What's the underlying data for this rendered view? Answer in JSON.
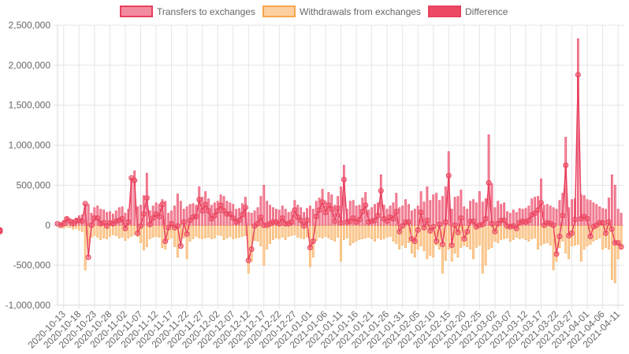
{
  "chart_data": {
    "type": "bar",
    "title": "",
    "xlabel": "",
    "ylabel": "",
    "ylim": [
      -1000000,
      2500000
    ],
    "y_ticks": [
      "2,500,000",
      "2,000,000",
      "1,500,000",
      "1,000,000",
      "500,000",
      "0",
      "-500,000",
      "-1,000,000"
    ],
    "y_tick_values": [
      2500000,
      2000000,
      1500000,
      1000000,
      500000,
      0,
      -500000,
      -1000000
    ],
    "x_range": [
      "2020-10-11",
      "2021-04-13"
    ],
    "x_ticks": [
      "2020-10-13",
      "2020-10-18",
      "2020-10-23",
      "2020-10-28",
      "2020-11-02",
      "2020-11-07",
      "2020-11-12",
      "2020-11-17",
      "2020-11-22",
      "2020-11-27",
      "2020-12-02",
      "2020-12-07",
      "2020-12-12",
      "2020-12-17",
      "2020-12-22",
      "2020-12-27",
      "2021-01-01",
      "2021-01-06",
      "2021-01-11",
      "2021-01-16",
      "2021-01-21",
      "2021-01-26",
      "2021-01-31",
      "2021-02-05",
      "2021-02-10",
      "2021-02-15",
      "2021-02-20",
      "2021-02-25",
      "2021-03-02",
      "2021-03-07",
      "2021-03-12",
      "2021-03-17",
      "2021-03-22",
      "2021-03-27",
      "2021-04-01",
      "2021-04-06",
      "2021-04-11"
    ],
    "grid": true,
    "legend_position": "top",
    "series": [
      {
        "name": "Transfers to exchanges",
        "kind": "bar",
        "color": "#e8405e",
        "fill": "#f38ba0"
      },
      {
        "name": "Withdrawals from exchanges",
        "kind": "bar",
        "color": "#f5a64a",
        "fill": "#fdd0a2"
      },
      {
        "name": "Difference",
        "kind": "line",
        "color": "#e8405e",
        "fill": "#f05a6e"
      }
    ],
    "x": [
      "2020-10-11",
      "2020-10-12",
      "2020-10-13",
      "2020-10-14",
      "2020-10-15",
      "2020-10-16",
      "2020-10-17",
      "2020-10-18",
      "2020-10-19",
      "2020-10-20",
      "2020-10-21",
      "2020-10-22",
      "2020-10-23",
      "2020-10-24",
      "2020-10-25",
      "2020-10-26",
      "2020-10-27",
      "2020-10-28",
      "2020-10-29",
      "2020-10-30",
      "2020-10-31",
      "2020-11-01",
      "2020-11-02",
      "2020-11-03",
      "2020-11-04",
      "2020-11-05",
      "2020-11-06",
      "2020-11-07",
      "2020-11-08",
      "2020-11-09",
      "2020-11-10",
      "2020-11-11",
      "2020-11-12",
      "2020-11-13",
      "2020-11-14",
      "2020-11-15",
      "2020-11-16",
      "2020-11-17",
      "2020-11-18",
      "2020-11-19",
      "2020-11-20",
      "2020-11-21",
      "2020-11-22",
      "2020-11-23",
      "2020-11-24",
      "2020-11-25",
      "2020-11-26",
      "2020-11-27",
      "2020-11-28",
      "2020-11-29",
      "2020-11-30",
      "2020-12-01",
      "2020-12-02",
      "2020-12-03",
      "2020-12-04",
      "2020-12-05",
      "2020-12-06",
      "2020-12-07",
      "2020-12-08",
      "2020-12-09",
      "2020-12-10",
      "2020-12-11",
      "2020-12-12",
      "2020-12-13",
      "2020-12-14",
      "2020-12-15",
      "2020-12-16",
      "2020-12-17",
      "2020-12-18",
      "2020-12-19",
      "2020-12-20",
      "2020-12-21",
      "2020-12-22",
      "2020-12-23",
      "2020-12-24",
      "2020-12-25",
      "2020-12-26",
      "2020-12-27",
      "2020-12-28",
      "2020-12-29",
      "2020-12-30",
      "2020-12-31",
      "2021-01-01",
      "2021-01-02",
      "2021-01-03",
      "2021-01-04",
      "2021-01-05",
      "2021-01-06",
      "2021-01-07",
      "2021-01-08",
      "2021-01-09",
      "2021-01-10",
      "2021-01-11",
      "2021-01-12",
      "2021-01-13",
      "2021-01-14",
      "2021-01-15",
      "2021-01-16",
      "2021-01-17",
      "2021-01-18",
      "2021-01-19",
      "2021-01-20",
      "2021-01-21",
      "2021-01-22",
      "2021-01-23",
      "2021-01-24",
      "2021-01-25",
      "2021-01-26",
      "2021-01-27",
      "2021-01-28",
      "2021-01-29",
      "2021-01-30",
      "2021-01-31",
      "2021-02-01",
      "2021-02-02",
      "2021-02-03",
      "2021-02-04",
      "2021-02-05",
      "2021-02-06",
      "2021-02-07",
      "2021-02-08",
      "2021-02-09",
      "2021-02-10",
      "2021-02-11",
      "2021-02-12",
      "2021-02-13",
      "2021-02-14",
      "2021-02-15",
      "2021-02-16",
      "2021-02-17",
      "2021-02-18",
      "2021-02-19",
      "2021-02-20",
      "2021-02-21",
      "2021-02-22",
      "2021-02-23",
      "2021-02-24",
      "2021-02-25",
      "2021-02-26",
      "2021-02-27",
      "2021-02-28",
      "2021-03-01",
      "2021-03-02",
      "2021-03-03",
      "2021-03-04",
      "2021-03-05",
      "2021-03-06",
      "2021-03-07",
      "2021-03-08",
      "2021-03-09",
      "2021-03-10",
      "2021-03-11",
      "2021-03-12",
      "2021-03-13",
      "2021-03-14",
      "2021-03-15",
      "2021-03-16",
      "2021-03-17",
      "2021-03-18",
      "2021-03-19",
      "2021-03-20",
      "2021-03-21",
      "2021-03-22",
      "2021-03-23",
      "2021-03-24",
      "2021-03-25",
      "2021-03-26",
      "2021-03-27",
      "2021-03-28",
      "2021-03-29",
      "2021-03-30",
      "2021-03-31",
      "2021-04-01",
      "2021-04-02",
      "2021-04-03",
      "2021-04-04",
      "2021-04-05",
      "2021-04-06",
      "2021-04-07",
      "2021-04-08",
      "2021-04-09",
      "2021-04-10",
      "2021-04-11",
      "2021-04-12"
    ],
    "transfers": [
      40000,
      30000,
      60000,
      100000,
      80000,
      70000,
      90000,
      120000,
      130000,
      270000,
      260000,
      150000,
      220000,
      240000,
      200000,
      190000,
      160000,
      170000,
      140000,
      180000,
      220000,
      230000,
      150000,
      200000,
      590000,
      680000,
      230000,
      250000,
      370000,
      650000,
      180000,
      240000,
      280000,
      260000,
      320000,
      300000,
      150000,
      180000,
      240000,
      390000,
      300000,
      200000,
      230000,
      260000,
      270000,
      250000,
      480000,
      350000,
      420000,
      330000,
      250000,
      280000,
      300000,
      380000,
      360000,
      300000,
      280000,
      260000,
      200000,
      210000,
      270000,
      350000,
      160000,
      150000,
      180000,
      220000,
      360000,
      500000,
      300000,
      250000,
      220000,
      200000,
      190000,
      240000,
      200000,
      160000,
      170000,
      310000,
      250000,
      220000,
      160000,
      210000,
      240000,
      200000,
      300000,
      340000,
      450000,
      300000,
      410000,
      380000,
      250000,
      360000,
      480000,
      750000,
      200000,
      300000,
      310000,
      240000,
      250000,
      340000,
      410000,
      190000,
      220000,
      260000,
      280000,
      630000,
      250000,
      200000,
      240000,
      280000,
      400000,
      220000,
      240000,
      320000,
      260000,
      180000,
      200000,
      240000,
      420000,
      290000,
      480000,
      310000,
      380000,
      400000,
      310000,
      360000,
      480000,
      920000,
      200000,
      350000,
      360000,
      440000,
      230000,
      200000,
      300000,
      320000,
      280000,
      420000,
      290000,
      330000,
      1130000,
      520000,
      220000,
      300000,
      260000,
      280000,
      170000,
      150000,
      190000,
      160000,
      210000,
      200000,
      210000,
      240000,
      330000,
      350000,
      360000,
      580000,
      250000,
      260000,
      240000,
      220000,
      200000,
      310000,
      400000,
      1100000,
      220000,
      320000,
      330000,
      2330000,
      380000,
      370000,
      320000,
      310000,
      280000,
      260000,
      230000,
      210000,
      200000,
      340000,
      630000,
      500000,
      200000,
      150000,
      110000,
      70000,
      40000
    ],
    "withdrawals": [
      -20000,
      -30000,
      -40000,
      -20000,
      -30000,
      -50000,
      -40000,
      -60000,
      -80000,
      -560000,
      -250000,
      -150000,
      -130000,
      -150000,
      -180000,
      -160000,
      -170000,
      -140000,
      -120000,
      -130000,
      -160000,
      -150000,
      -190000,
      -160000,
      -140000,
      -120000,
      -140000,
      -220000,
      -310000,
      -270000,
      -170000,
      -150000,
      -140000,
      -150000,
      -280000,
      -300000,
      -180000,
      -160000,
      -270000,
      -400000,
      -180000,
      -160000,
      -420000,
      -200000,
      -170000,
      -140000,
      -160000,
      -170000,
      -160000,
      -150000,
      -170000,
      -160000,
      -120000,
      -130000,
      -180000,
      -160000,
      -140000,
      -170000,
      -160000,
      -150000,
      -140000,
      -130000,
      -600000,
      -450000,
      -190000,
      -200000,
      -260000,
      -500000,
      -300000,
      -230000,
      -180000,
      -160000,
      -170000,
      -150000,
      -180000,
      -140000,
      -130000,
      -120000,
      -150000,
      -160000,
      -170000,
      -150000,
      -520000,
      -400000,
      -190000,
      -150000,
      -160000,
      -140000,
      -160000,
      -180000,
      -200000,
      -150000,
      -450000,
      -180000,
      -160000,
      -250000,
      -220000,
      -200000,
      -180000,
      -170000,
      -160000,
      -150000,
      -170000,
      -200000,
      -160000,
      -180000,
      -170000,
      -150000,
      -140000,
      -200000,
      -230000,
      -300000,
      -250000,
      -280000,
      -220000,
      -350000,
      -400000,
      -300000,
      -260000,
      -320000,
      -420000,
      -380000,
      -400000,
      -250000,
      -300000,
      -600000,
      -440000,
      -300000,
      -450000,
      -350000,
      -400000,
      -280000,
      -250000,
      -270000,
      -300000,
      -420000,
      -280000,
      -250000,
      -600000,
      -500000,
      -300000,
      -280000,
      -200000,
      -220000,
      -180000,
      -170000,
      -160000,
      -200000,
      -180000,
      -150000,
      -170000,
      -160000,
      -180000,
      -200000,
      -170000,
      -160000,
      -300000,
      -250000,
      -230000,
      -220000,
      -250000,
      -560000,
      -450000,
      -280000,
      -200000,
      -350000,
      -420000,
      -260000,
      -250000,
      -240000,
      -450000,
      -300000,
      -260000,
      -240000,
      -200000,
      -180000,
      -160000,
      -300000,
      -280000,
      -300000,
      -680000,
      -720000,
      -420000,
      -300000,
      -260000,
      -220000,
      -180000,
      -150000,
      -100000
    ],
    "difference": [
      20000,
      0,
      20000,
      80000,
      50000,
      20000,
      50000,
      60000,
      50000,
      270000,
      -400000,
      0,
      90000,
      90000,
      20000,
      30000,
      -10000,
      30000,
      20000,
      50000,
      60000,
      80000,
      -40000,
      40000,
      590000,
      560000,
      -100000,
      -10000,
      140000,
      340000,
      10000,
      90000,
      140000,
      110000,
      260000,
      -200000,
      -30000,
      20000,
      -30000,
      -10000,
      -260000,
      40000,
      -110000,
      60000,
      100000,
      110000,
      320000,
      180000,
      260000,
      180000,
      80000,
      120000,
      180000,
      250000,
      180000,
      140000,
      140000,
      90000,
      40000,
      60000,
      130000,
      220000,
      -440000,
      -300000,
      -10000,
      20000,
      100000,
      0,
      0,
      20000,
      40000,
      40000,
      20000,
      90000,
      20000,
      20000,
      40000,
      190000,
      100000,
      60000,
      -10000,
      60000,
      -280000,
      -200000,
      110000,
      190000,
      290000,
      160000,
      250000,
      200000,
      50000,
      210000,
      30000,
      570000,
      40000,
      50000,
      90000,
      40000,
      70000,
      170000,
      250000,
      40000,
      50000,
      60000,
      120000,
      430000,
      80000,
      50000,
      100000,
      80000,
      170000,
      -80000,
      -10000,
      40000,
      40000,
      -170000,
      -200000,
      -60000,
      160000,
      -30000,
      60000,
      -70000,
      -20000,
      -200000,
      10000,
      -240000,
      40000,
      620000,
      -250000,
      0,
      -90000,
      90000,
      -170000,
      -80000,
      50000,
      50000,
      -20000,
      0,
      10000,
      80000,
      530000,
      20000,
      -80000,
      20000,
      60000,
      60000,
      -10000,
      -20000,
      -10000,
      -40000,
      30000,
      50000,
      40000,
      60000,
      130000,
      150000,
      190000,
      280000,
      0,
      30000,
      20000,
      0,
      -360000,
      -140000,
      120000,
      750000,
      -130000,
      -100000,
      70000,
      1880000,
      80000,
      110000,
      80000,
      -140000,
      -20000,
      0,
      30000,
      30000,
      -100000,
      40000,
      -50000,
      -220000,
      -220000,
      -270000,
      -60000,
      -70000,
      -70000,
      -80000,
      -60000
    ]
  },
  "legend": {
    "items": [
      {
        "label": "Transfers to exchanges",
        "swatch_fill": "#f38ba0",
        "swatch_stroke": "#e8405e"
      },
      {
        "label": "Withdrawals from exchanges",
        "swatch_fill": "#fdd0a2",
        "swatch_stroke": "#f5a64a"
      },
      {
        "label": "Difference",
        "swatch_fill": "#ed4a66",
        "swatch_stroke": "#e8405e"
      }
    ]
  },
  "colors": {
    "grid": "#e5e5e5",
    "zero_line": "#d0d0d0",
    "axis": "#d9d9d9",
    "tick_text": "#666666"
  }
}
